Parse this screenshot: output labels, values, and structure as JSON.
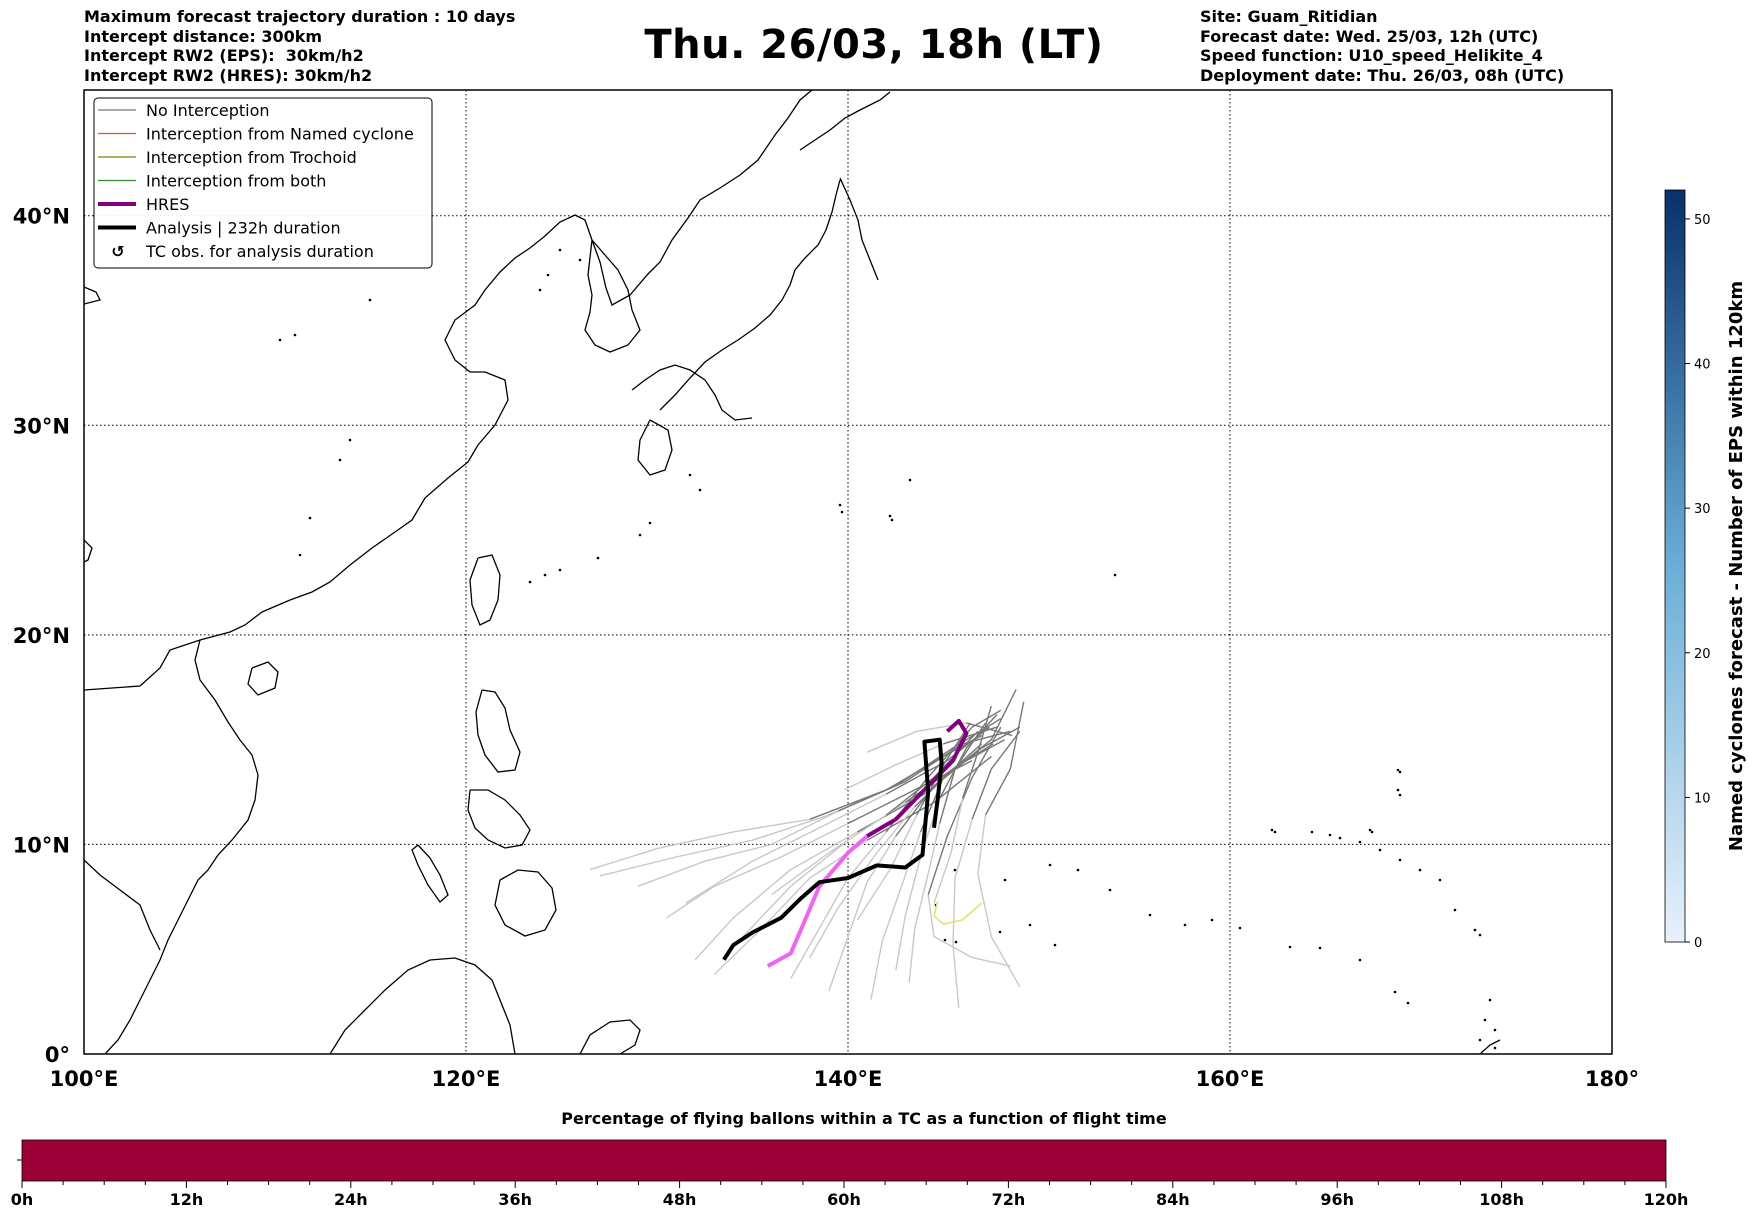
{
  "header_left": [
    "Maximum forecast trajectory duration : 10 days",
    "Intercept distance: 300km",
    "Intercept RW2 (EPS):  30km/h2",
    "Intercept RW2 (HRES): 30km/h2"
  ],
  "title": "Thu. 26/03, 18h (LT)",
  "header_right": [
    "Site: Guam_Ritidian",
    "Forecast date: Wed. 25/03, 12h (UTC)",
    "Speed function: U10_speed_Helikite_4",
    "Deployment date: Thu. 26/03, 08h (UTC)"
  ],
  "map": {
    "lon_range": [
      100,
      180
    ],
    "lat_range": [
      0,
      46
    ],
    "lon_ticks": [
      {
        "value": 100,
        "label": "100°E"
      },
      {
        "value": 120,
        "label": "120°E"
      },
      {
        "value": 140,
        "label": "140°E"
      },
      {
        "value": 160,
        "label": "160°E"
      },
      {
        "value": 180,
        "label": "180°"
      }
    ],
    "lat_ticks": [
      {
        "value": 0,
        "label": "0°"
      },
      {
        "value": 10,
        "label": "10°N"
      },
      {
        "value": 20,
        "label": "20°N"
      },
      {
        "value": 30,
        "label": "30°N"
      },
      {
        "value": 40,
        "label": "40°N"
      }
    ],
    "grid": "dotted",
    "colors": {
      "coast": "#000000",
      "no_interception": "#777777",
      "no_interception_faded": "#c8c8c8",
      "named_cyclone": "#e8501e",
      "trochoid": "#808000",
      "both": "#2e8b2e",
      "hres": "#800080",
      "hres_early": "#ee66ee",
      "analysis": "#000000",
      "yellow_member": "#e8e070"
    }
  },
  "legend": {
    "placement": "upper-left",
    "entries": [
      {
        "label": "No Interception",
        "color": "#777777",
        "style": "thin"
      },
      {
        "label": "Interception from Named cyclone",
        "color": "#e8501e",
        "style": "thin"
      },
      {
        "label": "Interception from Trochoid",
        "color": "#808000",
        "style": "thin"
      },
      {
        "label": "Interception from both",
        "color": "#2e8b2e",
        "style": "thin"
      },
      {
        "label": "HRES",
        "color": "#800080",
        "style": "thick"
      },
      {
        "label": "Analysis | 232h duration",
        "color": "#000000",
        "style": "thick"
      },
      {
        "label": "TC obs. for analysis duration",
        "color": "#000000",
        "style": "marker"
      }
    ]
  },
  "chart_data": {
    "type": "line",
    "units": "degrees lon/lat",
    "hres": [
      [
        135.8,
        4.2
      ],
      [
        137,
        4.8
      ],
      [
        137.8,
        6.5
      ],
      [
        138.5,
        8.0
      ],
      [
        140,
        9.6
      ],
      [
        141,
        10.4
      ],
      [
        142.5,
        11.2
      ],
      [
        144,
        12.6
      ],
      [
        145.5,
        14.0
      ],
      [
        146.2,
        15.3
      ],
      [
        145.8,
        15.9
      ],
      [
        145.2,
        15.4
      ]
    ],
    "analysis": [
      [
        133.5,
        4.5
      ],
      [
        134,
        5.2
      ],
      [
        135,
        5.8
      ],
      [
        136.5,
        6.5
      ],
      [
        137.5,
        7.4
      ],
      [
        138.5,
        8.2
      ],
      [
        140,
        8.4
      ],
      [
        141.5,
        9.0
      ],
      [
        143,
        8.9
      ],
      [
        143.9,
        9.5
      ],
      [
        144,
        10.5
      ],
      [
        144.2,
        12.5
      ],
      [
        144,
        14.9
      ],
      [
        144.8,
        15.0
      ],
      [
        144.9,
        13.9
      ],
      [
        144.7,
        12.2
      ],
      [
        144.5,
        10.8
      ]
    ],
    "eps_members": [
      [
        [
          126.5,
          8.8
        ],
        [
          130,
          9.8
        ],
        [
          134,
          10.6
        ],
        [
          138,
          11.2
        ],
        [
          142,
          12.6
        ],
        [
          145,
          14.2
        ],
        [
          147,
          15.2
        ]
      ],
      [
        [
          127,
          8.5
        ],
        [
          131,
          9.4
        ],
        [
          135,
          10.2
        ],
        [
          139,
          11.4
        ],
        [
          142.5,
          12.8
        ],
        [
          145.5,
          14.6
        ],
        [
          148,
          16.0
        ]
      ],
      [
        [
          129,
          8.0
        ],
        [
          132.5,
          9.2
        ],
        [
          136,
          10.0
        ],
        [
          139.5,
          11.6
        ],
        [
          143,
          13.0
        ],
        [
          146,
          14.8
        ],
        [
          148.5,
          15.4
        ]
      ],
      [
        [
          130.5,
          6.5
        ],
        [
          133,
          8.0
        ],
        [
          136.5,
          9.4
        ],
        [
          140,
          11.0
        ],
        [
          143.5,
          12.6
        ],
        [
          146.5,
          14.0
        ]
      ],
      [
        [
          132,
          4.5
        ],
        [
          134,
          6.5
        ],
        [
          137,
          8.8
        ],
        [
          140.5,
          10.6
        ],
        [
          144,
          12.4
        ],
        [
          147,
          14.6
        ],
        [
          149,
          15.6
        ]
      ],
      [
        [
          133,
          3.8
        ],
        [
          135.5,
          6.0
        ],
        [
          138,
          8.4
        ],
        [
          141,
          10.2
        ],
        [
          144.5,
          12.0
        ],
        [
          147.5,
          14.2
        ]
      ],
      [
        [
          137,
          3.6
        ],
        [
          138.5,
          6.0
        ],
        [
          140,
          8.4
        ],
        [
          142,
          10.6
        ],
        [
          144,
          13.0
        ],
        [
          146.5,
          15.6
        ],
        [
          148,
          16.4
        ]
      ],
      [
        [
          139,
          3.0
        ],
        [
          140,
          5.6
        ],
        [
          141,
          8.2
        ],
        [
          142.5,
          10.4
        ],
        [
          144.5,
          12.8
        ],
        [
          147,
          14.8
        ]
      ],
      [
        [
          141.2,
          2.6
        ],
        [
          141.8,
          5.4
        ],
        [
          142.8,
          8.0
        ],
        [
          143.8,
          10.6
        ],
        [
          145,
          13.2
        ],
        [
          147.5,
          15.0
        ],
        [
          148.8,
          17.4
        ]
      ],
      [
        [
          143.2,
          3.4
        ],
        [
          143.5,
          6.0
        ],
        [
          144.2,
          8.6
        ],
        [
          144.8,
          11.0
        ],
        [
          145.6,
          13.6
        ],
        [
          147.2,
          15.8
        ]
      ],
      [
        [
          145.8,
          2.2
        ],
        [
          145.5,
          5.2
        ],
        [
          145.6,
          8.4
        ],
        [
          146.5,
          11.2
        ],
        [
          147.5,
          13.6
        ],
        [
          149,
          15.4
        ]
      ],
      [
        [
          149,
          3.2
        ],
        [
          147.5,
          5.6
        ],
        [
          146.8,
          8.6
        ],
        [
          147.2,
          11.4
        ],
        [
          148.5,
          13.6
        ],
        [
          149.2,
          16.8
        ]
      ],
      [
        [
          148.5,
          4.2
        ],
        [
          146.5,
          4.6
        ],
        [
          144.5,
          5.6
        ],
        [
          144.2,
          7.6
        ],
        [
          145.2,
          10.4
        ],
        [
          146.5,
          13.2
        ],
        [
          148,
          15.6
        ]
      ],
      [
        [
          142.5,
          4.0
        ],
        [
          143,
          6.6
        ],
        [
          143.8,
          9.4
        ],
        [
          144.8,
          12.2
        ],
        [
          146.2,
          14.6
        ],
        [
          147.8,
          16.2
        ]
      ],
      [
        [
          138,
          4.6
        ],
        [
          139.5,
          7.0
        ],
        [
          141.5,
          9.6
        ],
        [
          143.5,
          11.8
        ],
        [
          145.5,
          13.6
        ],
        [
          147.6,
          14.8
        ]
      ],
      [
        [
          134.5,
          5.6
        ],
        [
          137,
          8.0
        ],
        [
          140,
          10.2
        ],
        [
          143,
          12.0
        ],
        [
          145.8,
          13.8
        ],
        [
          148.2,
          15.0
        ]
      ],
      [
        [
          131.5,
          7.2
        ],
        [
          135,
          9.2
        ],
        [
          138.5,
          10.8
        ],
        [
          142,
          12.4
        ],
        [
          145.2,
          14.0
        ],
        [
          147.4,
          15.6
        ]
      ],
      [
        [
          136,
          7.6
        ],
        [
          139,
          9.6
        ],
        [
          142,
          11.4
        ],
        [
          144.5,
          13.2
        ],
        [
          146.8,
          15.4
        ]
      ],
      [
        [
          140.5,
          6.4
        ],
        [
          142.2,
          8.8
        ],
        [
          143.6,
          11.4
        ],
        [
          145,
          13.8
        ],
        [
          146.4,
          15.8
        ]
      ],
      [
        [
          144.5,
          7.2
        ],
        [
          145.4,
          9.6
        ],
        [
          146,
          12.2
        ],
        [
          146.8,
          14.4
        ],
        [
          147.5,
          16.6
        ]
      ],
      [
        [
          139.8,
          12.6
        ],
        [
          142.5,
          13.8
        ],
        [
          145,
          14.8
        ],
        [
          147.8,
          15.6
        ]
      ],
      [
        [
          141,
          14.4
        ],
        [
          143.6,
          15.4
        ],
        [
          146.2,
          15.8
        ],
        [
          148.6,
          15.2
        ]
      ]
    ],
    "yellow_member": [
      [
        144.7,
        7.3
      ],
      [
        144.5,
        6.6
      ],
      [
        145,
        6.2
      ],
      [
        146,
        6.4
      ],
      [
        147,
        7.2
      ]
    ]
  },
  "colorbar_vertical": {
    "label": "Named cyclones forecast - Number of EPS within 120km",
    "ticks": [
      0,
      10,
      20,
      30,
      40,
      50
    ],
    "min": 0,
    "max": 52,
    "color_low": "#e8f1fb",
    "color_high": "#08306b"
  },
  "bottom_bar": {
    "title": "Percentage of flying ballons within a TC as a function of flight time",
    "ticks": [
      "0h",
      "12h",
      "24h",
      "36h",
      "48h",
      "60h",
      "72h",
      "84h",
      "96h",
      "108h",
      "120h"
    ],
    "color": "#9b0037"
  }
}
